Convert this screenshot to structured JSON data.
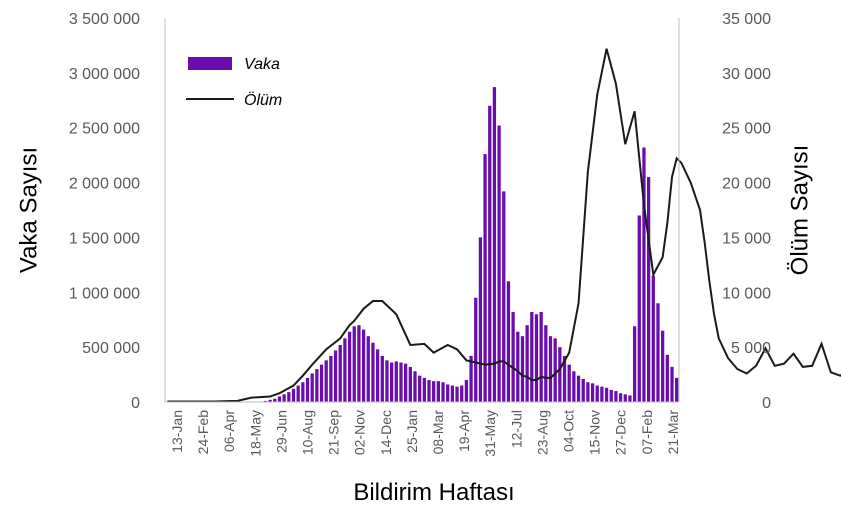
{
  "chart_data": {
    "type": "bar",
    "xlabel": "Bildirim Haftası",
    "ylabel_left": "Vaka Sayısı",
    "ylabel_right": "Ölüm Sayısı",
    "ylim_left": [
      0,
      3500000
    ],
    "ylim_right": [
      0,
      35000
    ],
    "yticks_left": [
      "0",
      "500 000",
      "1 000 000",
      "1 500 000",
      "2 000 000",
      "2 500 000",
      "3 000 000",
      "3 500 000"
    ],
    "yticks_right": [
      "0",
      "5 000",
      "10 000",
      "15 000",
      "20 000",
      "25 000",
      "30 000",
      "35 000"
    ],
    "x_tick_labels": [
      "13-Jan",
      "24-Feb",
      "06-Apr",
      "18-May",
      "29-Jun",
      "10-Aug",
      "21-Sep",
      "02-Nov",
      "14-Dec",
      "25-Jan",
      "08-Mar",
      "19-Apr",
      "31-May",
      "12-Jul",
      "23-Aug",
      "04-Oct",
      "15-Nov",
      "27-Dec",
      "07-Feb",
      "21-Mar"
    ],
    "legend_position": "top-left",
    "grid": false,
    "colors": {
      "bars": "#6a0dad",
      "line": "#1a1a1a",
      "axis": "#bfbfbf"
    },
    "series": [
      {
        "name": "Vaka",
        "type": "bar",
        "axis": "left",
        "values": [
          0,
          0,
          0,
          0,
          0,
          0,
          0,
          0,
          0,
          0,
          0,
          0,
          0,
          0,
          0,
          0,
          0,
          0,
          0,
          0,
          5000,
          10000,
          20000,
          30000,
          50000,
          70000,
          90000,
          120000,
          150000,
          180000,
          220000,
          260000,
          300000,
          340000,
          380000,
          420000,
          470000,
          520000,
          580000,
          640000,
          690000,
          700000,
          660000,
          600000,
          540000,
          480000,
          420000,
          380000,
          360000,
          370000,
          360000,
          350000,
          320000,
          280000,
          240000,
          220000,
          200000,
          190000,
          190000,
          180000,
          160000,
          150000,
          140000,
          150000,
          200000,
          420000,
          950000,
          1500000,
          2260000,
          2700000,
          2870000,
          2520000,
          1920000,
          1100000,
          820000,
          640000,
          600000,
          700000,
          820000,
          800000,
          820000,
          700000,
          600000,
          580000,
          500000,
          420000,
          340000,
          280000,
          240000,
          210000,
          180000,
          170000,
          150000,
          140000,
          130000,
          110000,
          100000,
          80000,
          70000,
          60000,
          690000,
          1700000,
          2320000,
          2050000,
          1150000,
          900000,
          650000,
          430000,
          320000,
          220000
        ],
        "values_shown_by": "bar height"
      },
      {
        "name": "Ölüm",
        "type": "line",
        "axis": "right",
        "x": [
          0,
          5,
          10,
          15,
          18,
          22,
          24,
          27,
          29,
          31,
          34,
          37,
          39,
          40,
          42,
          44,
          46,
          49,
          52,
          55,
          57,
          60,
          62,
          64,
          66,
          68,
          70,
          71,
          72,
          73,
          74,
          75,
          76,
          77,
          78,
          79,
          80,
          81,
          82,
          83,
          84,
          86,
          88,
          90,
          92,
          94,
          96,
          98,
          100,
          102,
          104,
          106,
          107,
          108,
          109,
          110,
          112,
          114,
          115,
          116,
          117,
          118,
          120,
          122,
          124,
          126,
          128,
          130,
          132,
          134,
          136,
          138,
          140,
          142,
          144,
          146,
          148,
          150,
          152,
          154,
          156,
          158,
          160,
          162,
          164,
          166,
          168,
          170,
          172,
          174,
          176,
          178,
          180,
          182,
          185,
          188,
          190,
          192,
          194,
          196,
          198,
          199
        ],
        "values": [
          50,
          50,
          50,
          100,
          400,
          500,
          800,
          1500,
          2400,
          3400,
          4800,
          5800,
          7000,
          7400,
          8500,
          9200,
          9200,
          8000,
          5200,
          5300,
          4500,
          5200,
          4800,
          3800,
          3600,
          3400,
          3500,
          3700,
          3700,
          3400,
          3100,
          2800,
          2400,
          2300,
          2000,
          2000,
          2300,
          2200,
          2200,
          2600,
          3000,
          4500,
          9000,
          21000,
          28000,
          32200,
          29000,
          23500,
          26500,
          18000,
          11600,
          13200,
          16300,
          20500,
          22200,
          21800,
          20000,
          17500,
          14500,
          11000,
          8000,
          5800,
          4000,
          3000,
          2600,
          3300,
          4900,
          3300,
          3500,
          4400,
          3200,
          3300,
          5300,
          2700,
          2400,
          3000,
          2600,
          2400,
          3400,
          6800,
          8700,
          7400,
          4300,
          4100,
          3300,
          2800,
          6100,
          2400,
          2200,
          2200,
          2200,
          2200,
          2200,
          2200,
          2200,
          2200,
          2200,
          2200,
          2200,
          2200,
          2200,
          2200
        ],
        "values_shown_by": "line position"
      }
    ]
  }
}
